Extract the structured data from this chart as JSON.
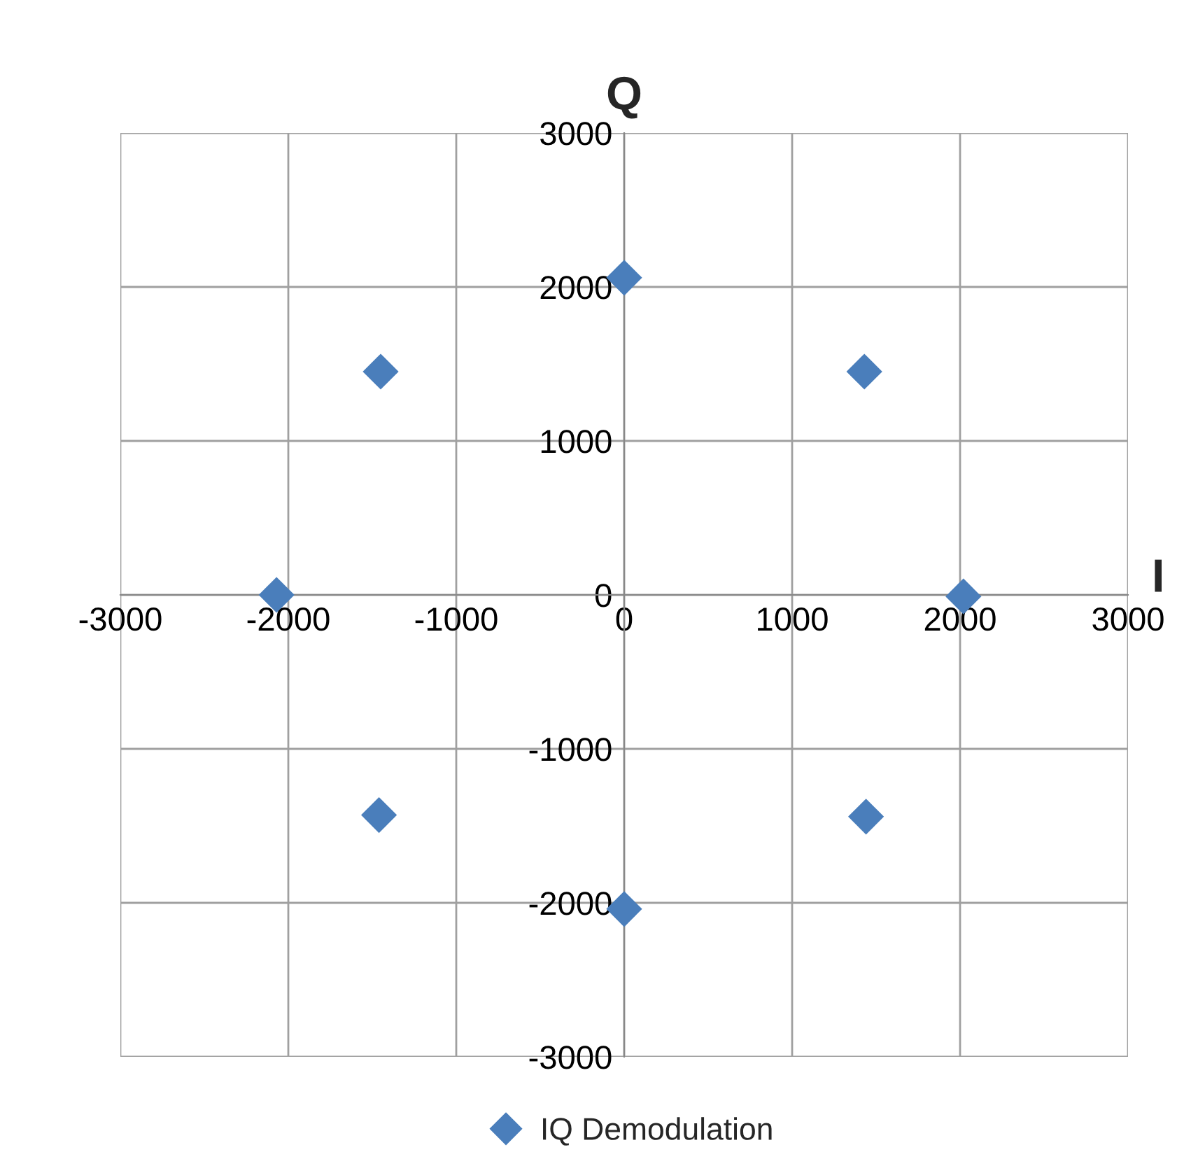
{
  "chart_data": {
    "type": "scatter",
    "xlabel": "I",
    "ylabel": "Q",
    "series": [
      {
        "name": "IQ Demodulation",
        "color": "#4a7ebb",
        "x": [
          0,
          -1450,
          1430,
          -2070,
          2020,
          -1460,
          1440,
          0
        ],
        "values": [
          2060,
          1450,
          1450,
          0,
          -10,
          -1430,
          -1440,
          -2040
        ]
      }
    ],
    "marker": "diamond",
    "xlim": [
      -3000,
      3000
    ],
    "ylim": [
      -3000,
      3000
    ],
    "xticks": [
      -3000,
      -2000,
      -1000,
      0,
      1000,
      2000,
      3000
    ],
    "yticks": [
      -3000,
      -2000,
      -1000,
      0,
      1000,
      2000,
      3000
    ],
    "grid": true,
    "legend": "bottom"
  }
}
